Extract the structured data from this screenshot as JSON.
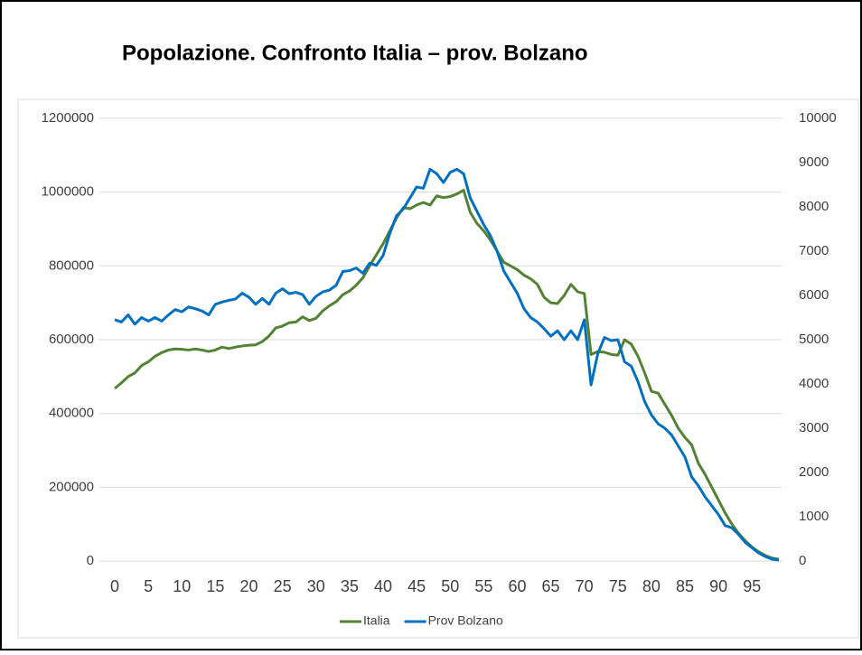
{
  "chart_data": {
    "type": "line",
    "title": "Popolazione. Confronto Italia – prov. Bolzano",
    "x": [
      0,
      1,
      2,
      3,
      4,
      5,
      6,
      7,
      8,
      9,
      10,
      11,
      12,
      13,
      14,
      15,
      16,
      17,
      18,
      19,
      20,
      21,
      22,
      23,
      24,
      25,
      26,
      27,
      28,
      29,
      30,
      31,
      32,
      33,
      34,
      35,
      36,
      37,
      38,
      39,
      40,
      41,
      42,
      43,
      44,
      45,
      46,
      47,
      48,
      49,
      50,
      51,
      52,
      53,
      54,
      55,
      56,
      57,
      58,
      59,
      60,
      61,
      62,
      63,
      64,
      65,
      66,
      67,
      68,
      69,
      70,
      71,
      72,
      73,
      74,
      75,
      76,
      77,
      78,
      79,
      80,
      81,
      82,
      83,
      84,
      85,
      86,
      87,
      88,
      89,
      90,
      91,
      92,
      93,
      94,
      95,
      96,
      97,
      98,
      99
    ],
    "xlim": [
      0,
      99
    ],
    "xticks": [
      0,
      5,
      10,
      15,
      20,
      25,
      30,
      35,
      40,
      45,
      50,
      55,
      60,
      65,
      70,
      75,
      80,
      85,
      90,
      95
    ],
    "ylim": [
      0,
      1200000
    ],
    "yticks": [
      0,
      200000,
      400000,
      600000,
      800000,
      1000000,
      1200000
    ],
    "y2lim": [
      0,
      10000
    ],
    "y2ticks": [
      0,
      1000,
      2000,
      3000,
      4000,
      5000,
      6000,
      7000,
      8000,
      9000,
      10000
    ],
    "grid": true,
    "legend": "bottom",
    "series": [
      {
        "name": "Italia",
        "color": "#548235",
        "axis": "y",
        "values": [
          468000,
          483000,
          500000,
          510000,
          530000,
          540000,
          555000,
          565000,
          572000,
          575000,
          574000,
          572000,
          575000,
          572000,
          568000,
          572000,
          580000,
          576000,
          580000,
          583000,
          585000,
          586000,
          595000,
          610000,
          632000,
          637000,
          646000,
          648000,
          662000,
          652000,
          658000,
          678000,
          692000,
          703000,
          722000,
          732000,
          748000,
          768000,
          800000,
          830000,
          860000,
          895000,
          930000,
          958000,
          955000,
          965000,
          972000,
          965000,
          990000,
          985000,
          988000,
          995000,
          1005000,
          945000,
          915000,
          895000,
          870000,
          840000,
          810000,
          800000,
          790000,
          775000,
          765000,
          750000,
          715000,
          700000,
          698000,
          720000,
          750000,
          730000,
          725000,
          560000,
          568000,
          566000,
          560000,
          558000,
          600000,
          588000,
          555000,
          510000,
          460000,
          455000,
          425000,
          395000,
          360000,
          335000,
          315000,
          265000,
          235000,
          200000,
          165000,
          130000,
          100000,
          75000,
          55000,
          38000,
          25000,
          15000,
          8000,
          5000
        ]
      },
      {
        "name": "Prov Bolzano",
        "color": "#0070c0",
        "axis": "y2",
        "values": [
          5450,
          5400,
          5560,
          5350,
          5500,
          5420,
          5500,
          5420,
          5560,
          5680,
          5630,
          5740,
          5700,
          5650,
          5560,
          5800,
          5850,
          5890,
          5920,
          6050,
          5960,
          5800,
          5930,
          5800,
          6050,
          6150,
          6040,
          6070,
          6020,
          5800,
          5980,
          6080,
          6120,
          6230,
          6540,
          6560,
          6620,
          6500,
          6730,
          6680,
          6900,
          7400,
          7800,
          7950,
          8200,
          8450,
          8420,
          8850,
          8750,
          8550,
          8780,
          8850,
          8750,
          8200,
          7900,
          7600,
          7350,
          7000,
          6550,
          6300,
          6050,
          5700,
          5500,
          5400,
          5250,
          5080,
          5200,
          5000,
          5200,
          5000,
          5450,
          3980,
          4680,
          5050,
          4980,
          5000,
          4500,
          4400,
          4050,
          3600,
          3300,
          3100,
          3000,
          2850,
          2600,
          2350,
          1900,
          1700,
          1450,
          1250,
          1050,
          800,
          750,
          600,
          420,
          300,
          180,
          100,
          40,
          20
        ]
      }
    ]
  }
}
